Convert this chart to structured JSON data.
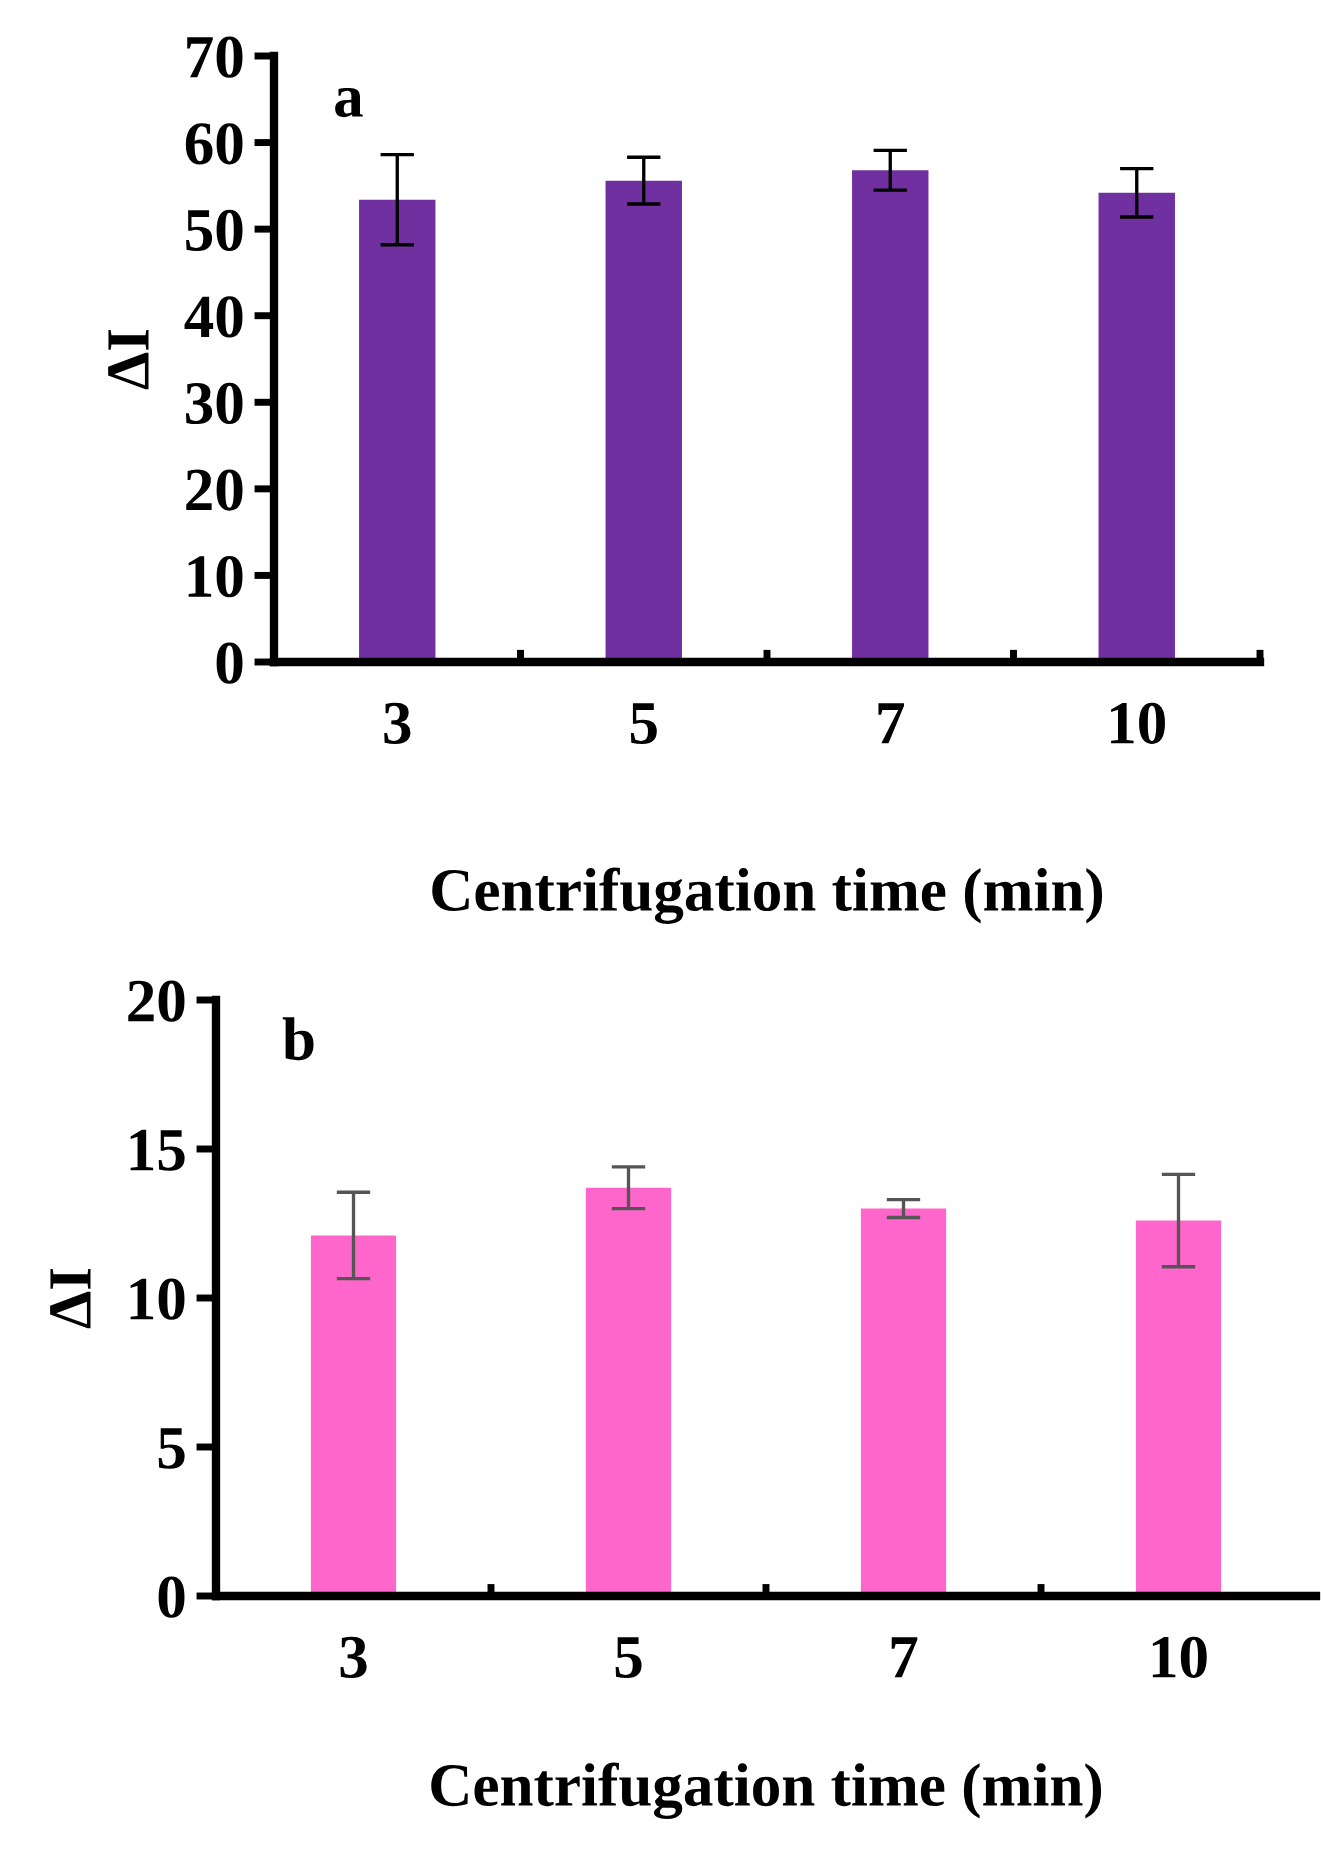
{
  "chart_data": [
    {
      "type": "bar",
      "categories": [
        "3",
        "5",
        "7",
        "10"
      ],
      "values": [
        53.4,
        55.6,
        56.8,
        54.2
      ],
      "errors": [
        5.2,
        2.7,
        2.3,
        2.8
      ],
      "color": "#7030a0",
      "xlabel": "Centrifugation time (min)",
      "ylabel": "ΔI",
      "ylim": [
        0,
        70
      ],
      "yticks": [
        0,
        10,
        20,
        30,
        40,
        50,
        60,
        70
      ],
      "annotations": [
        "a"
      ]
    },
    {
      "type": "bar",
      "categories": [
        "3",
        "5",
        "7",
        "10"
      ],
      "values": [
        12.1,
        13.7,
        13.0,
        12.6
      ],
      "errors": [
        1.45,
        0.7,
        0.3,
        1.55
      ],
      "color": "#ff66cc",
      "xlabel": "Centrifugation time (min)",
      "ylabel": "ΔI",
      "ylim": [
        0,
        20
      ],
      "yticks": [
        0,
        5,
        10,
        15,
        20
      ],
      "annotations": [
        "b"
      ]
    }
  ]
}
